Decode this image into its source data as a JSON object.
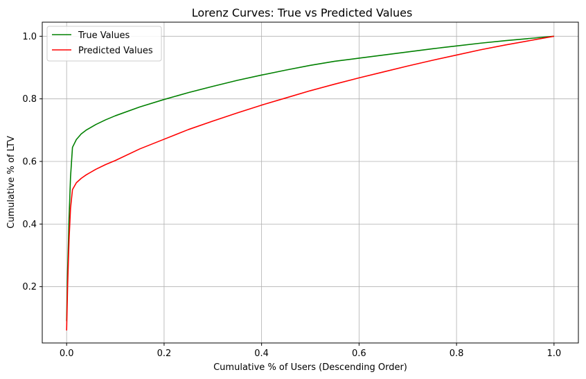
{
  "chart_data": {
    "type": "line",
    "title": "Lorenz Curves: True vs Predicted Values",
    "xlabel": "Cumulative % of Users (Descending Order)",
    "ylabel": "Cumulative % of LTV",
    "xlim": [
      -0.05,
      1.05
    ],
    "ylim": [
      0.02,
      1.045
    ],
    "xticks": [
      0.0,
      0.2,
      0.4,
      0.6,
      0.8,
      1.0
    ],
    "xtick_labels": [
      "0.0",
      "0.2",
      "0.4",
      "0.6",
      "0.8",
      "1.0"
    ],
    "yticks": [
      0.2,
      0.4,
      0.6,
      0.8,
      1.0
    ],
    "ytick_labels": [
      "0.2",
      "0.4",
      "0.6",
      "0.8",
      "1.0"
    ],
    "grid": true,
    "legend_position": "top-left",
    "series": [
      {
        "name": "True Values",
        "color": "#008000",
        "x": [
          0.0,
          0.002,
          0.005,
          0.008,
          0.012,
          0.02,
          0.03,
          0.04,
          0.06,
          0.08,
          0.1,
          0.15,
          0.2,
          0.25,
          0.3,
          0.35,
          0.4,
          0.45,
          0.5,
          0.55,
          0.6,
          0.65,
          0.7,
          0.75,
          0.8,
          0.85,
          0.9,
          0.95,
          1.0
        ],
        "y": [
          0.09,
          0.25,
          0.42,
          0.55,
          0.645,
          0.67,
          0.688,
          0.7,
          0.718,
          0.733,
          0.746,
          0.774,
          0.798,
          0.82,
          0.84,
          0.859,
          0.876,
          0.892,
          0.907,
          0.92,
          0.93,
          0.94,
          0.95,
          0.96,
          0.969,
          0.978,
          0.986,
          0.993,
          1.0
        ]
      },
      {
        "name": "Predicted Values",
        "color": "#ff0000",
        "x": [
          0.0,
          0.002,
          0.005,
          0.008,
          0.012,
          0.02,
          0.03,
          0.04,
          0.06,
          0.08,
          0.1,
          0.15,
          0.2,
          0.25,
          0.3,
          0.35,
          0.4,
          0.45,
          0.5,
          0.55,
          0.6,
          0.65,
          0.7,
          0.75,
          0.8,
          0.85,
          0.9,
          0.95,
          1.0
        ],
        "y": [
          0.06,
          0.2,
          0.35,
          0.45,
          0.51,
          0.532,
          0.546,
          0.557,
          0.575,
          0.59,
          0.603,
          0.64,
          0.671,
          0.702,
          0.729,
          0.755,
          0.78,
          0.803,
          0.826,
          0.847,
          0.867,
          0.886,
          0.905,
          0.923,
          0.94,
          0.957,
          0.972,
          0.986,
          1.0
        ]
      }
    ]
  }
}
